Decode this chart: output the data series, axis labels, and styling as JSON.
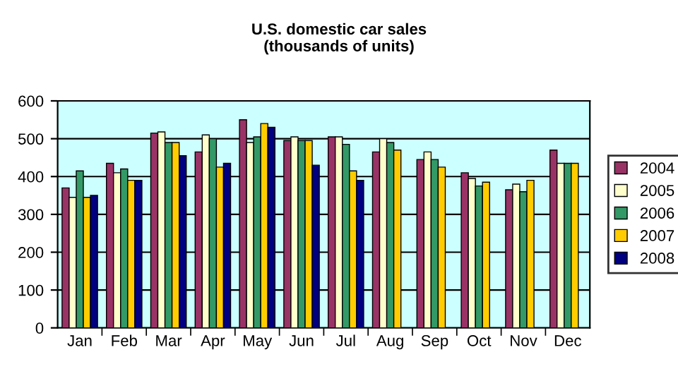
{
  "chart_data": {
    "type": "bar",
    "title": "U.S. domestic car sales\n(thousands of units)",
    "categories": [
      "Jan",
      "Feb",
      "Mar",
      "Apr",
      "May",
      "Jun",
      "Jul",
      "Aug",
      "Sep",
      "Oct",
      "Nov",
      "Dec"
    ],
    "series": [
      {
        "name": "2004",
        "color": "#993366",
        "values": [
          370,
          435,
          515,
          465,
          550,
          495,
          505,
          465,
          445,
          410,
          365,
          470
        ]
      },
      {
        "name": "2005",
        "color": "#ffffcc",
        "values": [
          345,
          410,
          518,
          510,
          490,
          505,
          505,
          500,
          465,
          395,
          380,
          435
        ]
      },
      {
        "name": "2006",
        "color": "#339966",
        "values": [
          415,
          420,
          490,
          500,
          505,
          495,
          485,
          490,
          445,
          375,
          360,
          435
        ]
      },
      {
        "name": "2007",
        "color": "#ffcc00",
        "values": [
          345,
          390,
          490,
          425,
          540,
          495,
          415,
          470,
          425,
          385,
          390,
          435
        ]
      },
      {
        "name": "2008",
        "color": "#000080",
        "values": [
          350,
          390,
          455,
          435,
          530,
          430,
          390,
          null,
          null,
          null,
          null,
          null
        ]
      }
    ],
    "ylim": [
      0,
      600
    ],
    "yticks": [
      0,
      100,
      200,
      300,
      400,
      500,
      600
    ],
    "grid": "y",
    "legend": "right"
  }
}
